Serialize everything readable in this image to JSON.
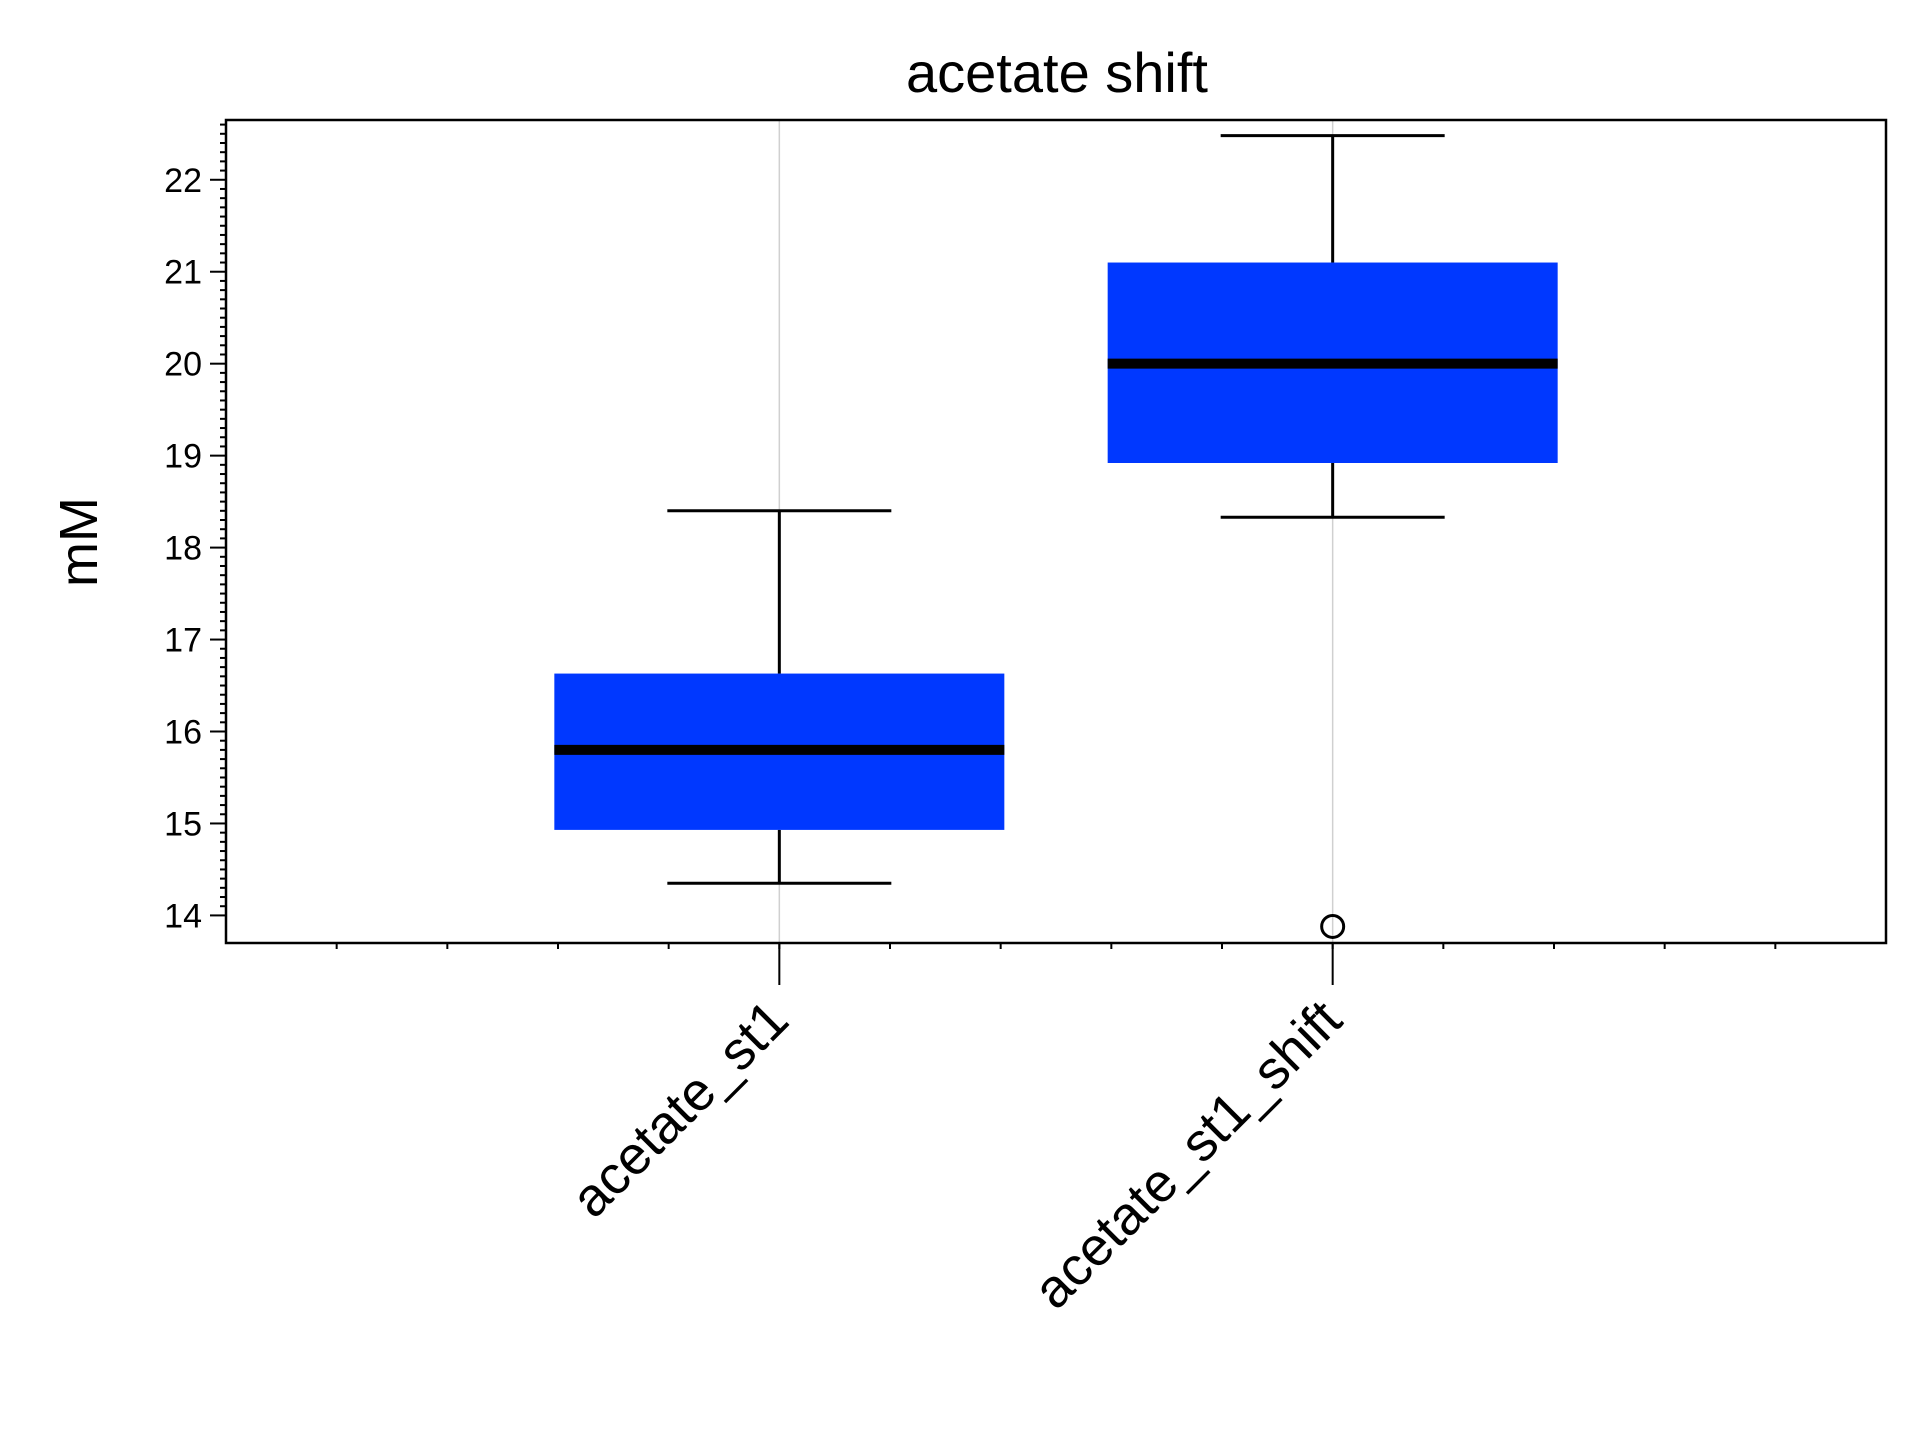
{
  "chart_data": {
    "type": "box",
    "title": "acetate shift",
    "xlabel": "",
    "ylabel": "mM",
    "ylim": [
      13.7,
      22.65
    ],
    "yticks": [
      14,
      15,
      16,
      17,
      18,
      19,
      20,
      21,
      22
    ],
    "ytick_labels": [
      "14",
      "15",
      "16",
      "17",
      "18",
      "19",
      "20",
      "21",
      "22"
    ],
    "categories": [
      "acetate_st1",
      "acetate_st1_shift"
    ],
    "boxes": [
      {
        "category": "acetate_st1",
        "whisker_low": 14.35,
        "q1": 14.93,
        "median": 15.8,
        "q3": 16.63,
        "whisker_high": 18.4,
        "outliers": []
      },
      {
        "category": "acetate_st1_shift",
        "whisker_low": 18.33,
        "q1": 18.92,
        "median": 20.0,
        "q3": 21.1,
        "whisker_high": 22.48,
        "outliers": [
          13.88
        ]
      }
    ],
    "grid": {
      "x": true,
      "y": false
    },
    "colors": {
      "box_fill": "#0038ff",
      "median": "#000000",
      "whisker": "#000000",
      "grid": "#d0d0d0",
      "axis": "#000000"
    }
  }
}
